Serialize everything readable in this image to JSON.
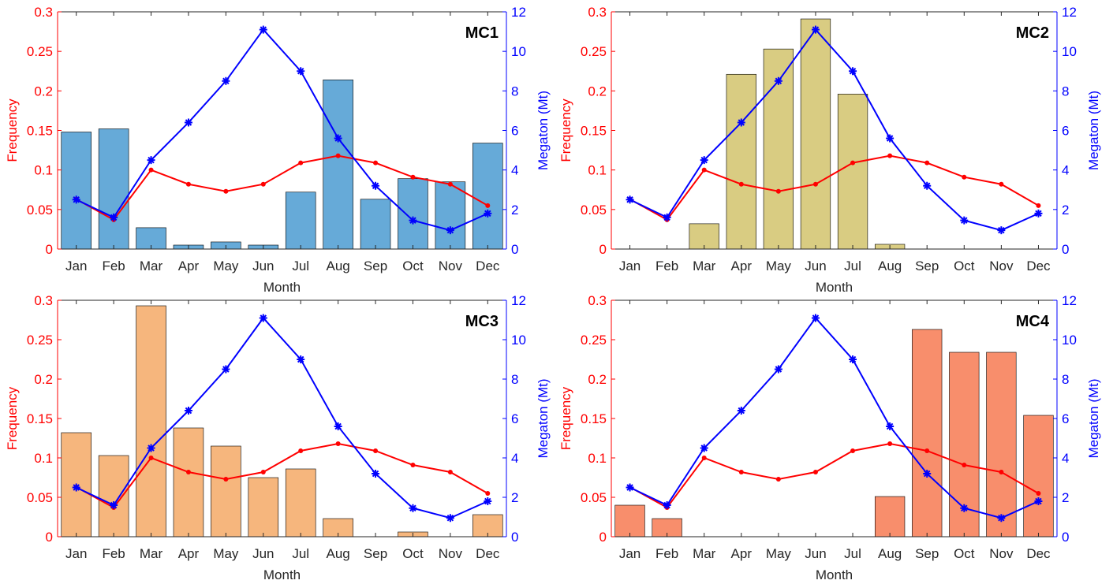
{
  "colors": {
    "frequency": "#ff0000",
    "megaton": "#0000ff",
    "axis": "#262626",
    "bar_edge": "#000000"
  },
  "shared": {
    "months": [
      "Jan",
      "Feb",
      "Mar",
      "Apr",
      "May",
      "Jun",
      "Jul",
      "Aug",
      "Sep",
      "Oct",
      "Nov",
      "Dec"
    ],
    "xlabel": "Month",
    "ylabel_left": "Frequency",
    "ylabel_right": "Megaton (Mt)",
    "yticks_left": [
      "0",
      "0.05",
      "0.1",
      "0.15",
      "0.2",
      "0.25",
      "0.3"
    ],
    "yticks_right": [
      "0",
      "2",
      "4",
      "6",
      "8",
      "10",
      "12"
    ]
  },
  "chart_data": [
    {
      "type": "bar",
      "label": "MC1",
      "bar_color": "#66aad8",
      "categories": [
        "Jan",
        "Feb",
        "Mar",
        "Apr",
        "May",
        "Jun",
        "Jul",
        "Aug",
        "Sep",
        "Oct",
        "Nov",
        "Dec"
      ],
      "xlabel": "Month",
      "ylabel": "Frequency",
      "y2label": "Megaton (Mt)",
      "ylim": [
        0,
        0.3
      ],
      "y2lim": [
        0,
        12
      ],
      "bars": [
        0.148,
        0.152,
        0.027,
        0.005,
        0.009,
        0.005,
        0.072,
        0.214,
        0.063,
        0.089,
        0.085,
        0.134
      ],
      "frequency": [
        0.063,
        0.037,
        0.1,
        0.082,
        0.073,
        0.082,
        0.109,
        0.118,
        0.109,
        0.091,
        0.082,
        0.055
      ],
      "megaton": [
        2.5,
        1.6,
        4.5,
        6.4,
        8.5,
        11.1,
        9.0,
        5.6,
        3.2,
        1.45,
        0.95,
        1.8
      ]
    },
    {
      "type": "bar",
      "label": "MC2",
      "bar_color": "#d9cc82",
      "categories": [
        "Jan",
        "Feb",
        "Mar",
        "Apr",
        "May",
        "Jun",
        "Jul",
        "Aug",
        "Sep",
        "Oct",
        "Nov",
        "Dec"
      ],
      "xlabel": "Month",
      "ylabel": "Frequency",
      "y2label": "Megaton (Mt)",
      "ylim": [
        0,
        0.3
      ],
      "y2lim": [
        0,
        12
      ],
      "bars": [
        0,
        0,
        0.032,
        0.221,
        0.253,
        0.291,
        0.196,
        0.006,
        0,
        0,
        0,
        0
      ],
      "frequency": [
        0.063,
        0.037,
        0.1,
        0.082,
        0.073,
        0.082,
        0.109,
        0.118,
        0.109,
        0.091,
        0.082,
        0.055
      ],
      "megaton": [
        2.5,
        1.6,
        4.5,
        6.4,
        8.5,
        11.1,
        9.0,
        5.6,
        3.2,
        1.45,
        0.95,
        1.8
      ]
    },
    {
      "type": "bar",
      "label": "MC3",
      "bar_color": "#f6b67d",
      "categories": [
        "Jan",
        "Feb",
        "Mar",
        "Apr",
        "May",
        "Jun",
        "Jul",
        "Aug",
        "Sep",
        "Oct",
        "Nov",
        "Dec"
      ],
      "xlabel": "Month",
      "ylabel": "Frequency",
      "y2label": "Megaton (Mt)",
      "ylim": [
        0,
        0.3
      ],
      "y2lim": [
        0,
        12
      ],
      "bars": [
        0.132,
        0.103,
        0.293,
        0.138,
        0.115,
        0.075,
        0.086,
        0.023,
        0,
        0.006,
        0,
        0.028
      ],
      "frequency": [
        0.063,
        0.037,
        0.1,
        0.082,
        0.073,
        0.082,
        0.109,
        0.118,
        0.109,
        0.091,
        0.082,
        0.055
      ],
      "megaton": [
        2.5,
        1.6,
        4.5,
        6.4,
        8.5,
        11.1,
        9.0,
        5.6,
        3.2,
        1.45,
        0.95,
        1.8
      ]
    },
    {
      "type": "bar",
      "label": "MC4",
      "bar_color": "#f88e6c",
      "categories": [
        "Jan",
        "Feb",
        "Mar",
        "Apr",
        "May",
        "Jun",
        "Jul",
        "Aug",
        "Sep",
        "Oct",
        "Nov",
        "Dec"
      ],
      "xlabel": "Month",
      "ylabel": "Frequency",
      "y2label": "Megaton (Mt)",
      "ylim": [
        0,
        0.3
      ],
      "y2lim": [
        0,
        12
      ],
      "bars": [
        0.04,
        0.023,
        0,
        0,
        0,
        0,
        0,
        0.051,
        0.263,
        0.234,
        0.234,
        0.154
      ],
      "frequency": [
        0.063,
        0.037,
        0.1,
        0.082,
        0.073,
        0.082,
        0.109,
        0.118,
        0.109,
        0.091,
        0.082,
        0.055
      ],
      "megaton": [
        2.5,
        1.6,
        4.5,
        6.4,
        8.5,
        11.1,
        9.0,
        5.6,
        3.2,
        1.45,
        0.95,
        1.8
      ]
    }
  ]
}
